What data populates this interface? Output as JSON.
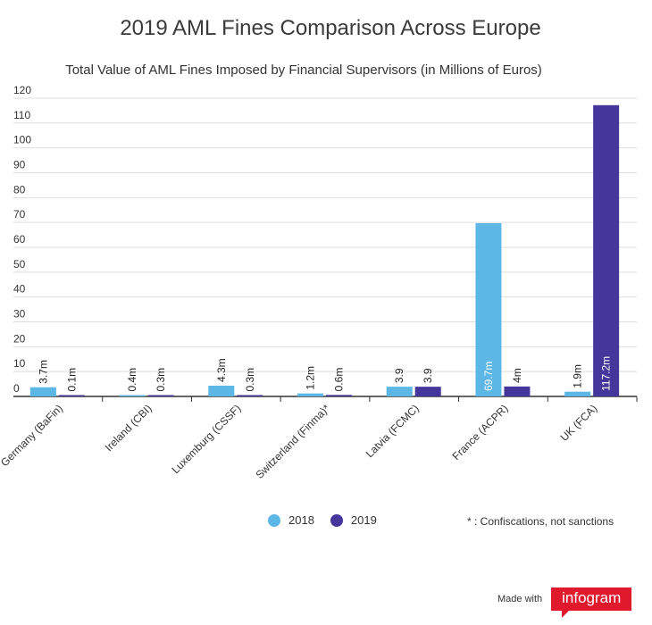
{
  "chart_data": {
    "type": "bar",
    "title": "2019 AML Fines Comparison Across Europe",
    "subtitle": "Total Value of AML Fines Imposed by Financial Supervisors (in Millions of Euros)",
    "categories": [
      "Germany (BaFin)",
      "Ireland (CBI)",
      "Luxemburg (CSSF)",
      "Switzerland (Finma)*",
      "Latvia (FCMC)",
      "France (ACPR)",
      "UK (FCA)"
    ],
    "series": [
      {
        "name": "2018",
        "color": "#5cb6e6",
        "values": [
          3.7,
          0.4,
          4.3,
          1.2,
          3.9,
          69.7,
          1.9
        ],
        "labels": [
          "3.7m",
          "0.4m",
          "4.3m",
          "1.2m",
          "3.9",
          "69.7m",
          "1.9m"
        ]
      },
      {
        "name": "2019",
        "color": "#44369a",
        "values": [
          0.1,
          0.3,
          0.3,
          0.6,
          3.9,
          4,
          117.2
        ],
        "labels": [
          "0.1m",
          "0.3m",
          "0.3m",
          "0.6m",
          "3.9",
          "4m",
          "117.2m"
        ]
      }
    ],
    "y_ticks": [
      0,
      10,
      20,
      30,
      40,
      50,
      60,
      70,
      80,
      90,
      100,
      110,
      120
    ],
    "ylim": [
      0,
      120
    ],
    "grid": true,
    "legend_position": "bottom"
  },
  "note": "* : Confiscations, not sanctions",
  "footer": {
    "made_with": "Made with",
    "brand": "infogram"
  }
}
